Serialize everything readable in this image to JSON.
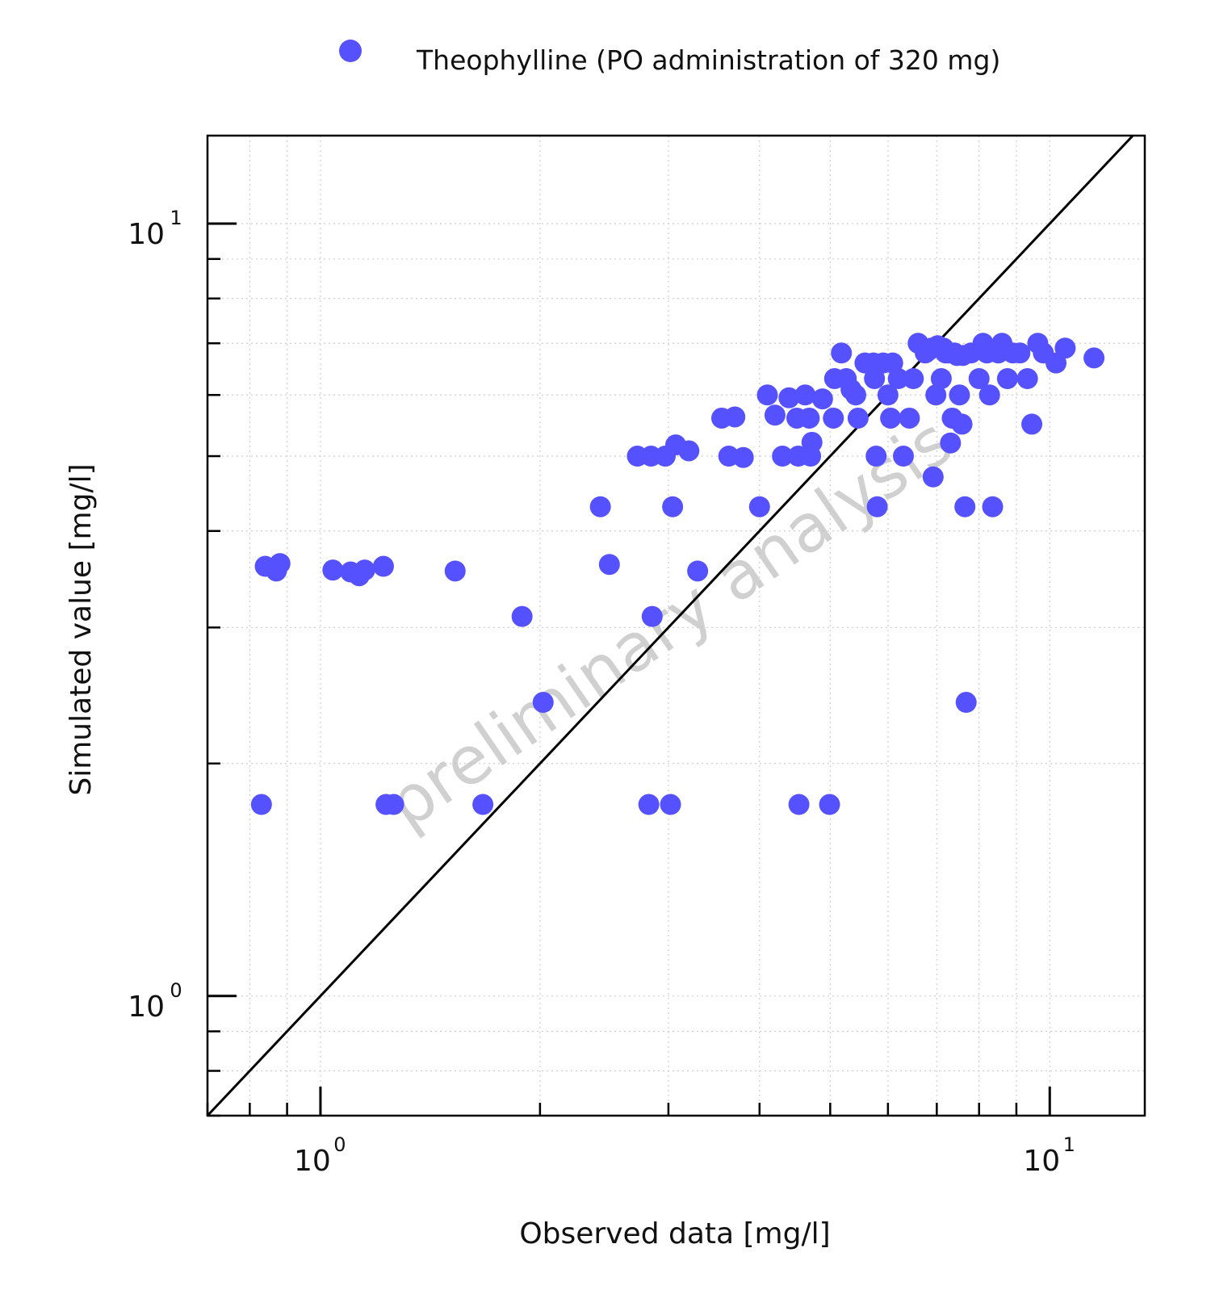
{
  "chart_data": {
    "type": "scatter",
    "xscale": "log",
    "yscale": "log",
    "xlim": [
      0.7,
      13.5
    ],
    "ylim": [
      0.7,
      13
    ],
    "xlabel": "Observed data [mg/l]",
    "ylabel": "Simulated value [mg/l]",
    "xticks": [
      {
        "base": "10",
        "exp": "0",
        "value": 1
      },
      {
        "base": "10",
        "exp": "1",
        "value": 10
      }
    ],
    "yticks": [
      {
        "base": "10",
        "exp": "0",
        "value": 1
      },
      {
        "base": "10",
        "exp": "1",
        "value": 10
      }
    ],
    "grid": true,
    "legend_position": "top",
    "identity_line": true,
    "watermark": "preliminary analysis",
    "series": [
      {
        "name": "Theophylline (PO administration of 320 mg)",
        "color": "#5551ff",
        "points": [
          [
            0.84,
            3.6
          ],
          [
            0.87,
            3.55
          ],
          [
            0.88,
            3.63
          ],
          [
            1.04,
            3.56
          ],
          [
            1.1,
            3.54
          ],
          [
            1.13,
            3.5
          ],
          [
            1.15,
            3.56
          ],
          [
            1.22,
            3.6
          ],
          [
            1.53,
            3.55
          ],
          [
            1.89,
            3.1
          ],
          [
            2.02,
            2.4
          ],
          [
            2.42,
            4.3
          ],
          [
            2.49,
            3.62
          ],
          [
            2.85,
            3.1
          ],
          [
            3.29,
            3.55
          ],
          [
            0.83,
            1.77
          ],
          [
            1.23,
            1.77
          ],
          [
            1.26,
            1.77
          ],
          [
            1.67,
            1.77
          ],
          [
            2.82,
            1.77
          ],
          [
            3.02,
            1.77
          ],
          [
            4.53,
            1.77
          ],
          [
            4.99,
            1.77
          ],
          [
            7.68,
            2.4
          ],
          [
            2.72,
            5.0
          ],
          [
            2.84,
            5.0
          ],
          [
            2.97,
            5.0
          ],
          [
            3.04,
            4.3
          ],
          [
            3.07,
            5.17
          ],
          [
            3.2,
            5.08
          ],
          [
            3.55,
            5.6
          ],
          [
            3.63,
            5.0
          ],
          [
            3.7,
            5.62
          ],
          [
            3.8,
            4.98
          ],
          [
            4.0,
            4.3
          ],
          [
            4.1,
            6.0
          ],
          [
            4.2,
            5.65
          ],
          [
            4.3,
            5.0
          ],
          [
            4.39,
            5.95
          ],
          [
            4.5,
            5.6
          ],
          [
            4.52,
            5.0
          ],
          [
            4.62,
            6.0
          ],
          [
            4.68,
            5.6
          ],
          [
            4.7,
            5.0
          ],
          [
            4.72,
            5.21
          ],
          [
            4.88,
            5.93
          ],
          [
            5.05,
            5.6
          ],
          [
            5.07,
            6.3
          ],
          [
            5.18,
            6.8
          ],
          [
            5.26,
            6.3
          ],
          [
            5.34,
            6.1
          ],
          [
            5.42,
            6.0
          ],
          [
            5.46,
            5.6
          ],
          [
            5.58,
            6.6
          ],
          [
            5.73,
            6.6
          ],
          [
            5.75,
            6.3
          ],
          [
            5.78,
            5.0
          ],
          [
            5.8,
            4.3
          ],
          [
            5.91,
            6.6
          ],
          [
            6.0,
            6.0
          ],
          [
            6.05,
            5.6
          ],
          [
            6.09,
            6.6
          ],
          [
            6.2,
            6.3
          ],
          [
            6.3,
            5.0
          ],
          [
            6.42,
            5.6
          ],
          [
            6.5,
            6.3
          ],
          [
            6.6,
            7.0
          ],
          [
            6.75,
            6.8
          ],
          [
            6.82,
            6.85
          ],
          [
            6.88,
            6.9
          ],
          [
            6.92,
            4.7
          ],
          [
            6.98,
            6.0
          ],
          [
            7.02,
            6.95
          ],
          [
            7.1,
            6.3
          ],
          [
            7.15,
            6.9
          ],
          [
            7.2,
            6.8
          ],
          [
            7.25,
            6.8
          ],
          [
            7.31,
            5.2
          ],
          [
            7.35,
            5.6
          ],
          [
            7.4,
            6.8
          ],
          [
            7.46,
            6.75
          ],
          [
            7.52,
            6.0
          ],
          [
            7.58,
            5.5
          ],
          [
            7.6,
            6.75
          ],
          [
            7.65,
            4.3
          ],
          [
            7.8,
            6.8
          ],
          [
            8.0,
            6.3
          ],
          [
            8.1,
            7.0
          ],
          [
            8.2,
            6.8
          ],
          [
            8.27,
            6.0
          ],
          [
            8.35,
            4.3
          ],
          [
            8.5,
            6.8
          ],
          [
            8.6,
            7.0
          ],
          [
            8.75,
            6.3
          ],
          [
            8.9,
            6.8
          ],
          [
            9.1,
            6.8
          ],
          [
            9.32,
            6.3
          ],
          [
            9.45,
            5.5
          ],
          [
            9.63,
            7.0
          ],
          [
            9.8,
            6.8
          ],
          [
            10.2,
            6.6
          ],
          [
            10.5,
            6.9
          ],
          [
            11.5,
            6.7
          ]
        ]
      }
    ]
  }
}
